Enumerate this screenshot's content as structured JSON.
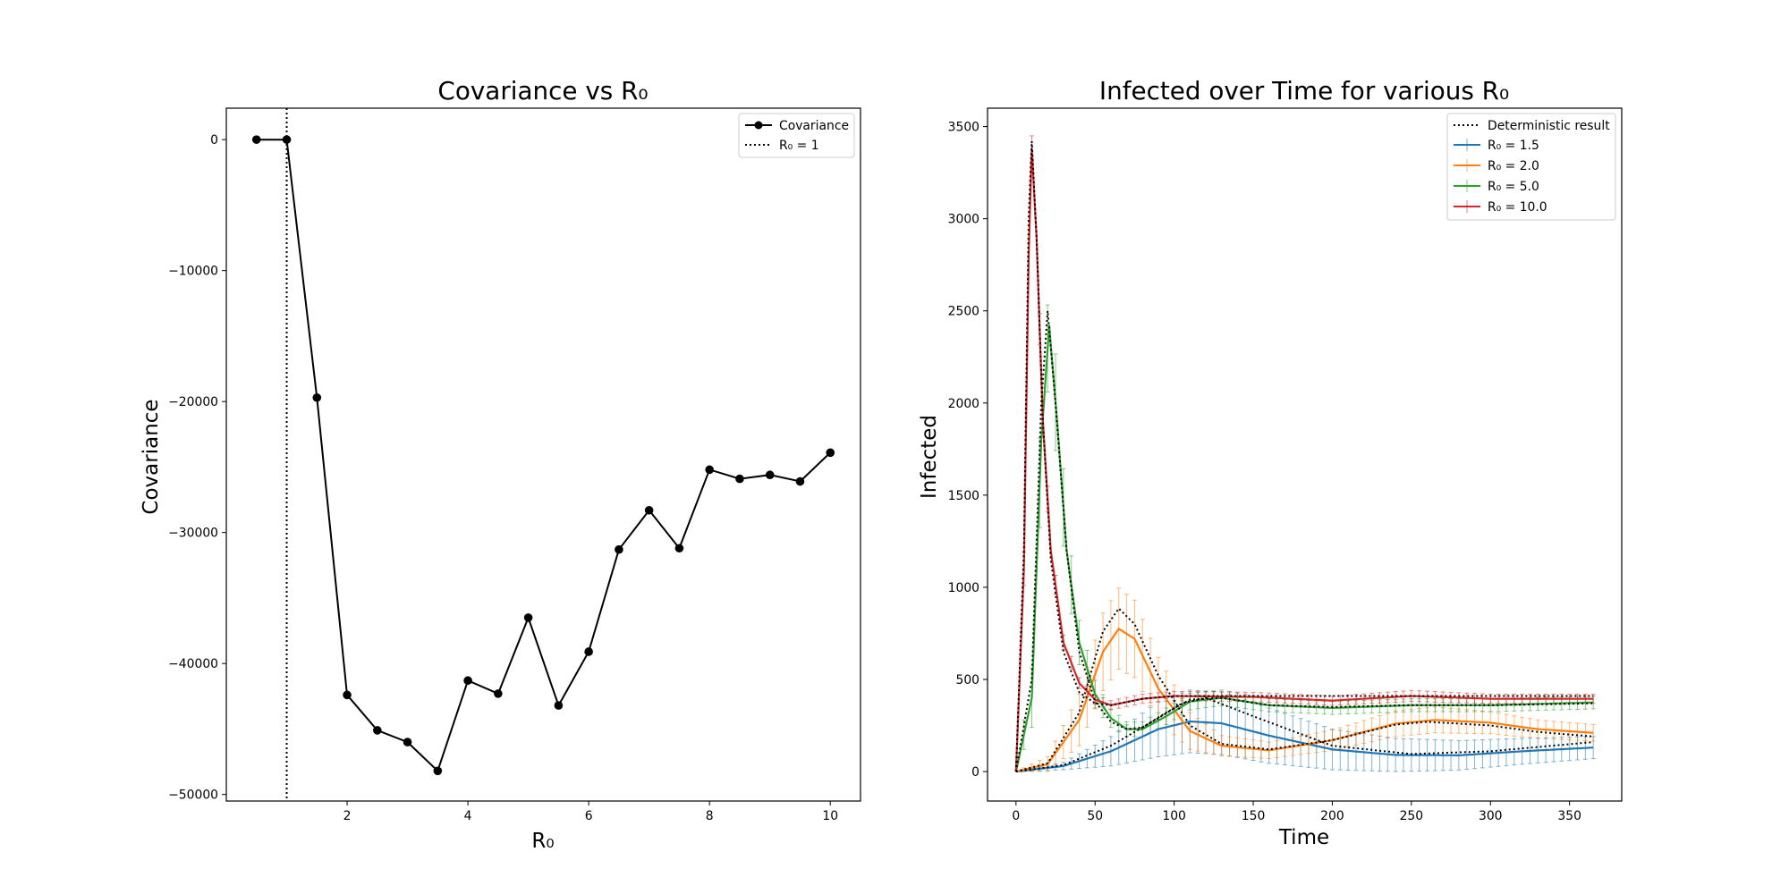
{
  "chart_data": [
    {
      "type": "line",
      "title": "Covariance vs R₀",
      "xlabel": "R₀",
      "ylabel": "Covariance",
      "xlim": [
        0.0,
        10.5
      ],
      "ylim": [
        -50500,
        2400
      ],
      "xticks": [
        2,
        4,
        6,
        8,
        10
      ],
      "yticks": [
        0,
        -10000,
        -20000,
        -30000,
        -40000,
        -50000
      ],
      "grid": false,
      "legend_position": "top-right",
      "legend": [
        "Covariance",
        "R₀ = 1"
      ],
      "series": [
        {
          "name": "Covariance",
          "color": "#000000",
          "marker": "circle",
          "x": [
            0.5,
            1.0,
            1.5,
            2.0,
            2.5,
            3.0,
            3.5,
            4.0,
            4.5,
            5.0,
            5.5,
            6.0,
            6.5,
            7.0,
            7.5,
            8.0,
            8.5,
            9.0,
            9.5,
            10.0
          ],
          "y": [
            0,
            0,
            -19700,
            -42400,
            -45100,
            -46000,
            -48200,
            -41300,
            -42300,
            -36500,
            -43200,
            -39100,
            -31300,
            -28300,
            -31200,
            -25200,
            -25900,
            -25600,
            -26100,
            -23900
          ]
        }
      ],
      "vline": {
        "name": "R₀ = 1",
        "x": 1,
        "style": "dotted",
        "color": "#000000"
      }
    },
    {
      "type": "line",
      "title": "Infected over Time for various R₀",
      "xlabel": "Time",
      "ylabel": "Infected",
      "xlim": [
        -18,
        383
      ],
      "ylim": [
        -160,
        3600
      ],
      "xticks": [
        0,
        50,
        100,
        150,
        200,
        250,
        300,
        350
      ],
      "yticks": [
        0,
        500,
        1000,
        1500,
        2000,
        2500,
        3000,
        3500
      ],
      "grid": false,
      "legend_position": "top-right",
      "legend": [
        "Deterministic result",
        "R₀ = 1.5",
        "R₀ = 2.0",
        "R₀ = 5.0",
        "R₀ = 10.0"
      ],
      "errorbar_step": 5,
      "series": [
        {
          "name": "R₀ = 1.5",
          "color": "#1f77b4",
          "x": [
            0,
            30,
            60,
            90,
            110,
            130,
            160,
            200,
            240,
            280,
            320,
            365
          ],
          "y": [
            0,
            30,
            110,
            230,
            272,
            262,
            195,
            120,
            90,
            88,
            110,
            130
          ],
          "err": [
            0,
            20,
            80,
            150,
            170,
            170,
            150,
            110,
            90,
            80,
            70,
            60
          ]
        },
        {
          "name": "R₀ = 2.0",
          "color": "#ff7f0e",
          "x": [
            0,
            20,
            40,
            55,
            65,
            75,
            90,
            110,
            130,
            160,
            200,
            240,
            265,
            300,
            330,
            365
          ],
          "y": [
            0,
            40,
            280,
            650,
            775,
            720,
            450,
            220,
            140,
            115,
            170,
            260,
            280,
            265,
            230,
            210
          ],
          "err": [
            0,
            40,
            140,
            210,
            220,
            210,
            170,
            100,
            55,
            45,
            55,
            70,
            70,
            60,
            50,
            45
          ]
        },
        {
          "name": "R₀ = 5.0",
          "color": "#2ca02c",
          "x": [
            0,
            10,
            16,
            21,
            26,
            32,
            40,
            50,
            60,
            70,
            80,
            95,
            110,
            130,
            160,
            200,
            250,
            300,
            365
          ],
          "y": [
            0,
            400,
            1800,
            2420,
            1900,
            1200,
            700,
            420,
            290,
            230,
            230,
            300,
            380,
            400,
            360,
            345,
            360,
            360,
            375
          ],
          "err": [
            0,
            160,
            260,
            230,
            270,
            180,
            120,
            75,
            50,
            40,
            40,
            45,
            45,
            42,
            35,
            35,
            35,
            35,
            35
          ]
        },
        {
          "name": "R₀ = 10.0",
          "color": "#d62728",
          "x": [
            0,
            5,
            8,
            10,
            13,
            17,
            22,
            30,
            40,
            50,
            60,
            80,
            100,
            150,
            200,
            250,
            300,
            365
          ],
          "y": [
            0,
            1100,
            2800,
            3380,
            2900,
            1900,
            1200,
            700,
            480,
            390,
            360,
            395,
            410,
            405,
            385,
            410,
            395,
            395
          ],
          "err": [
            0,
            90,
            90,
            70,
            90,
            80,
            60,
            40,
            30,
            25,
            25,
            25,
            25,
            25,
            25,
            30,
            25,
            25
          ]
        }
      ],
      "deterministic": [
        {
          "color": "#000000",
          "x": [
            0,
            30,
            60,
            90,
            105,
            120,
            150,
            200,
            250,
            300,
            365
          ],
          "y": [
            0,
            35,
            140,
            290,
            370,
            400,
            300,
            140,
            95,
            110,
            160
          ]
        },
        {
          "color": "#000000",
          "x": [
            0,
            20,
            40,
            55,
            65,
            75,
            90,
            110,
            130,
            160,
            200,
            240,
            260,
            300,
            330,
            365
          ],
          "y": [
            0,
            45,
            320,
            760,
            885,
            800,
            520,
            250,
            150,
            120,
            170,
            255,
            270,
            250,
            215,
            190
          ]
        },
        {
          "color": "#000000",
          "x": [
            0,
            10,
            16,
            20,
            25,
            32,
            40,
            50,
            60,
            70,
            80,
            95,
            110,
            130,
            160,
            200,
            250,
            300,
            365
          ],
          "y": [
            0,
            500,
            2000,
            2500,
            2000,
            1200,
            650,
            380,
            270,
            230,
            240,
            320,
            390,
            400,
            360,
            350,
            360,
            360,
            370
          ]
        },
        {
          "color": "#000000",
          "x": [
            0,
            5,
            8,
            10,
            13,
            17,
            22,
            30,
            40,
            50,
            60,
            80,
            100,
            150,
            200,
            250,
            300,
            365
          ],
          "y": [
            0,
            1200,
            3000,
            3420,
            2900,
            1900,
            1150,
            650,
            430,
            370,
            360,
            395,
            410,
            410,
            410,
            410,
            410,
            410
          ]
        }
      ]
    }
  ]
}
